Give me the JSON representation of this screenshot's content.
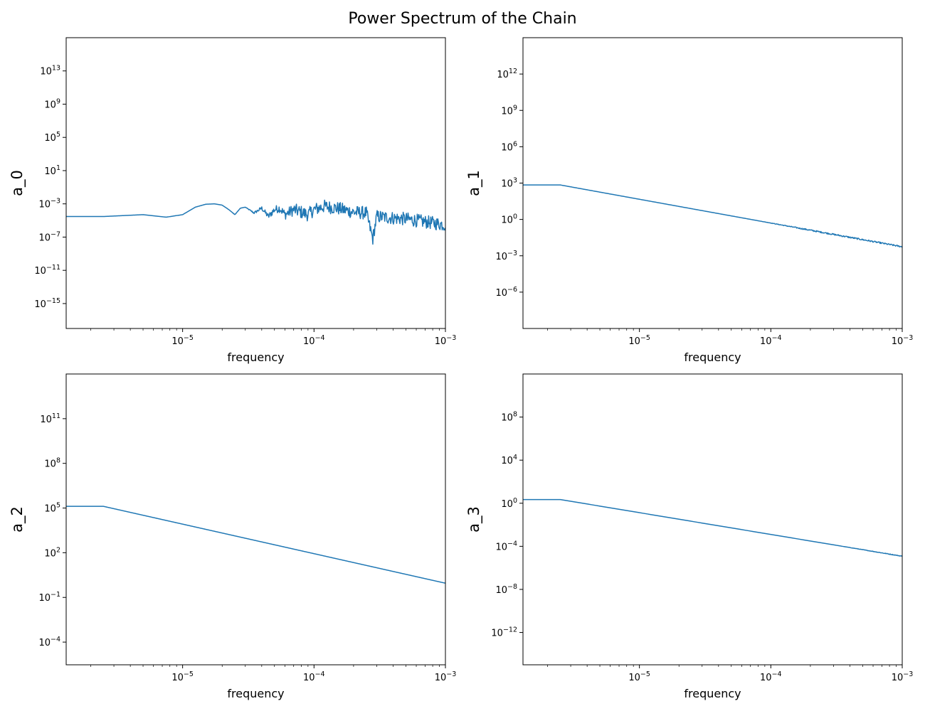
{
  "figure": {
    "title": "Power Spectrum of the Chain"
  },
  "style": {
    "line_color": "#1f77b4",
    "axis_color": "#000000",
    "background": "#ffffff"
  },
  "chart_data": [
    {
      "type": "line",
      "xscale": "log",
      "yscale": "log",
      "xlabel": "frequency",
      "ylabel": "a_0",
      "xlim": [
        1.3e-06,
        0.001
      ],
      "ylim": [
        1e-18,
        1e+17
      ],
      "xticks": [
        {
          "exp": -5
        },
        {
          "exp": -4
        },
        {
          "exp": -3
        }
      ],
      "yticks": [
        {
          "exp": -15
        },
        {
          "exp": -11
        },
        {
          "exp": -7
        },
        {
          "exp": -3
        },
        {
          "exp": 1
        },
        {
          "exp": 5
        },
        {
          "exp": 9
        },
        {
          "exp": 13
        }
      ],
      "noise": {
        "from": 3e-05,
        "log10_amplitude": 0.8
      },
      "series": [
        {
          "x": [
            1.3e-06,
            2.5e-06,
            5e-06,
            7.5e-06,
            1e-05,
            1.25e-05,
            1.5e-05,
            1.75e-05,
            2e-05,
            2.25e-05,
            2.5e-05,
            2.75e-05,
            3e-05,
            3.5e-05,
            4e-05,
            4.5e-05,
            5e-05,
            5.5e-05,
            6e-05,
            7e-05,
            8e-05,
            9e-05,
            0.0001,
            0.00012,
            0.00015,
            0.0002,
            0.00025,
            0.00028,
            0.0003,
            0.0004,
            0.0005,
            0.0006,
            0.0008,
            0.001
          ],
          "y": [
            3e-05,
            3e-05,
            5e-05,
            2.5e-05,
            5e-05,
            0.0004,
            0.0009,
            0.001,
            0.0007,
            0.0002,
            5e-05,
            0.0003,
            0.0004,
            8e-05,
            0.0003,
            3e-05,
            0.0002,
            0.0003,
            5e-05,
            0.0002,
            0.0001,
            5e-05,
            0.0002,
            0.0005,
            0.0003,
            0.0001,
            8e-05,
            6e-08,
            3e-05,
            2e-05,
            1.5e-05,
            1e-05,
            5e-06,
            3e-06
          ]
        }
      ]
    },
    {
      "type": "line",
      "xscale": "log",
      "yscale": "log",
      "xlabel": "frequency",
      "ylabel": "a_1",
      "xlim": [
        1.3e-06,
        0.001
      ],
      "ylim": [
        1e-09,
        1000000000000000.0
      ],
      "xticks": [
        {
          "exp": -5
        },
        {
          "exp": -4
        },
        {
          "exp": -3
        }
      ],
      "yticks": [
        {
          "exp": -6
        },
        {
          "exp": -3
        },
        {
          "exp": 0
        },
        {
          "exp": 3
        },
        {
          "exp": 6
        },
        {
          "exp": 9
        },
        {
          "exp": 12
        }
      ],
      "noise": {
        "from": 8e-05,
        "log10_amplitude": 0.06
      },
      "series": [
        {
          "x": [
            1.3e-06,
            2.5e-06,
            0.001
          ],
          "y": [
            700,
            700,
            0.0055
          ]
        }
      ]
    },
    {
      "type": "line",
      "xscale": "log",
      "yscale": "log",
      "xlabel": "frequency",
      "ylabel": "a_2",
      "xlim": [
        1.3e-06,
        0.001
      ],
      "ylim": [
        3e-06,
        100000000000000.0
      ],
      "xticks": [
        {
          "exp": -5
        },
        {
          "exp": -4
        },
        {
          "exp": -3
        }
      ],
      "yticks": [
        {
          "exp": -4
        },
        {
          "exp": -1
        },
        {
          "exp": 2
        },
        {
          "exp": 5
        },
        {
          "exp": 8
        },
        {
          "exp": 11
        }
      ],
      "noise": null,
      "series": [
        {
          "x": [
            1.3e-06,
            2.5e-06,
            0.001
          ],
          "y": [
            130000,
            130000,
            0.9
          ]
        }
      ]
    },
    {
      "type": "line",
      "xscale": "log",
      "yscale": "log",
      "xlabel": "frequency",
      "ylabel": "a_3",
      "xlim": [
        1.3e-06,
        0.001
      ],
      "ylim": [
        1e-15,
        1000000000000.0
      ],
      "xticks": [
        {
          "exp": -5
        },
        {
          "exp": -4
        },
        {
          "exp": -3
        }
      ],
      "yticks": [
        {
          "exp": -12
        },
        {
          "exp": -8
        },
        {
          "exp": -4
        },
        {
          "exp": 0
        },
        {
          "exp": 4
        },
        {
          "exp": 8
        }
      ],
      "noise": {
        "from": 0.0003,
        "log10_amplitude": 0.03
      },
      "series": [
        {
          "x": [
            1.3e-06,
            2.5e-06,
            0.001
          ],
          "y": [
            2.2,
            2.2,
            1.2e-05
          ]
        }
      ]
    }
  ]
}
